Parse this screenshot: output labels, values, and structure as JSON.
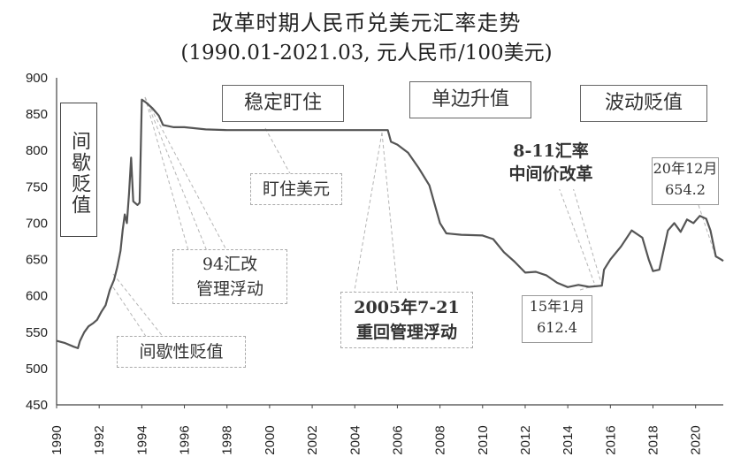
{
  "chart_data": {
    "type": "line",
    "title": "改革时期人民币兑美元汇率走势",
    "subtitle": "(1990.01-2021.03, 元人民币/100美元)",
    "xlabel": "",
    "ylabel": "",
    "xlim": [
      1990,
      2021.3
    ],
    "ylim": [
      450,
      900
    ],
    "x_ticks": [
      "1990",
      "1992",
      "1994",
      "1996",
      "1998",
      "2000",
      "2002",
      "2004",
      "2006",
      "2008",
      "2010",
      "2012",
      "2014",
      "2016",
      "2018",
      "2020"
    ],
    "y_ticks": [
      "450",
      "500",
      "550",
      "600",
      "650",
      "700",
      "750",
      "800",
      "850",
      "900"
    ],
    "grid": false,
    "legend": "none",
    "line_color": "#555555",
    "series": [
      {
        "points": [
          [
            1990.0,
            538
          ],
          [
            1990.4,
            535
          ],
          [
            1990.8,
            530
          ],
          [
            1991.0,
            528
          ],
          [
            1991.1,
            538
          ],
          [
            1991.3,
            550
          ],
          [
            1991.5,
            558
          ],
          [
            1991.7,
            562
          ],
          [
            1991.9,
            567
          ],
          [
            1992.1,
            578
          ],
          [
            1992.3,
            587
          ],
          [
            1992.5,
            608
          ],
          [
            1992.7,
            622
          ],
          [
            1992.85,
            640
          ],
          [
            1993.0,
            662
          ],
          [
            1993.1,
            690
          ],
          [
            1993.2,
            712
          ],
          [
            1993.3,
            700
          ],
          [
            1993.4,
            740
          ],
          [
            1993.5,
            790
          ],
          [
            1993.55,
            760
          ],
          [
            1993.6,
            730
          ],
          [
            1993.8,
            725
          ],
          [
            1993.9,
            728
          ],
          [
            1994.0,
            870
          ],
          [
            1994.2,
            866
          ],
          [
            1994.5,
            858
          ],
          [
            1994.8,
            848
          ],
          [
            1995.0,
            835
          ],
          [
            1995.5,
            832
          ],
          [
            1996.0,
            832
          ],
          [
            1997.0,
            829
          ],
          [
            1998.0,
            828
          ],
          [
            2000.0,
            828
          ],
          [
            2002.0,
            828
          ],
          [
            2004.0,
            828
          ],
          [
            2005.55,
            828
          ],
          [
            2005.7,
            812
          ],
          [
            2006.0,
            808
          ],
          [
            2006.5,
            797
          ],
          [
            2007.0,
            776
          ],
          [
            2007.5,
            752
          ],
          [
            2008.0,
            700
          ],
          [
            2008.3,
            686
          ],
          [
            2009.0,
            684
          ],
          [
            2010.0,
            683
          ],
          [
            2010.5,
            678
          ],
          [
            2011.0,
            660
          ],
          [
            2011.5,
            647
          ],
          [
            2012.0,
            632
          ],
          [
            2012.5,
            633
          ],
          [
            2013.0,
            628
          ],
          [
            2013.5,
            618
          ],
          [
            2014.0,
            612
          ],
          [
            2014.5,
            615
          ],
          [
            2015.0,
            612.4
          ],
          [
            2015.6,
            614
          ],
          [
            2015.7,
            636
          ],
          [
            2016.0,
            650
          ],
          [
            2016.5,
            668
          ],
          [
            2017.0,
            690
          ],
          [
            2017.5,
            680
          ],
          [
            2017.8,
            650
          ],
          [
            2018.0,
            634
          ],
          [
            2018.3,
            636
          ],
          [
            2018.7,
            690
          ],
          [
            2019.0,
            700
          ],
          [
            2019.3,
            688
          ],
          [
            2019.6,
            705
          ],
          [
            2019.9,
            700
          ],
          [
            2020.2,
            710
          ],
          [
            2020.5,
            706
          ],
          [
            2020.7,
            690
          ],
          [
            2020.95,
            654.2
          ],
          [
            2021.2,
            650
          ],
          [
            2021.3,
            648
          ]
        ]
      }
    ],
    "annotations": [
      {
        "text": "间歇贬值",
        "style": "solid"
      },
      {
        "text": "稳定盯住",
        "style": "solid"
      },
      {
        "text": "单边升值",
        "style": "solid"
      },
      {
        "text": "波动贬值",
        "style": "solid"
      },
      {
        "text": "8-11汇率 中间价改革",
        "style": "plain"
      },
      {
        "text": "20年12月 654.2",
        "style": "thin"
      },
      {
        "text": "盯住美元",
        "style": "dashed"
      },
      {
        "text": "94汇改 管理浮动",
        "style": "dashed"
      },
      {
        "text": "2005年7-21 重回管理浮动",
        "style": "dashed"
      },
      {
        "text": "15年1月 612.4",
        "style": "thin"
      },
      {
        "text": "间歇性贬值",
        "style": "dashed"
      }
    ]
  },
  "labels": {
    "jianxie_bianzhi": "间歇贬值",
    "wending_dingzhu": "稳定盯住",
    "danbian_shengzhi": "单边升值",
    "bodong_bianzhi": "波动贬值",
    "reform_811_line1": "8-11汇率",
    "reform_811_line2": "中间价改革",
    "dec20_line1": "20年12月",
    "dec20_line2": "654.2",
    "dingzhu_meiyuan": "盯住美元",
    "reform94_line1": "94汇改",
    "reform94_line2": "管理浮动",
    "reform2005_line1": "2005年7-21",
    "reform2005_line2": "重回管理浮动",
    "jan15_line1": "15年1月",
    "jan15_line2": "612.4",
    "jianxiexing_bianzhi": "间歇性贬值"
  }
}
